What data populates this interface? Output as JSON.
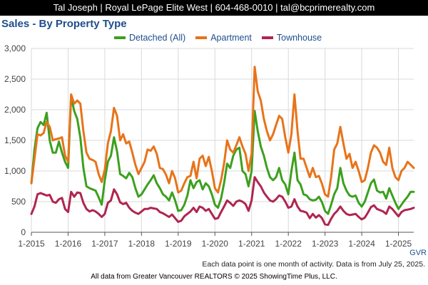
{
  "header": {
    "text": "Tal Joseph | Royal LePage Elite West | 604-468-0010 | tal@bcprimerealty.com"
  },
  "chart_data": {
    "type": "line",
    "title": "Sales - By Property Type",
    "xlabel": "",
    "ylabel": "",
    "ylim": [
      0,
      3000
    ],
    "yticks": [
      0,
      500,
      1000,
      1500,
      2000,
      2500,
      3000
    ],
    "ytick_labels": [
      "0",
      "500",
      "1,000",
      "1,500",
      "2,000",
      "2,500",
      "3,000"
    ],
    "x_start": "2015-01",
    "xtick_labels": [
      "1-2015",
      "1-2016",
      "1-2017",
      "1-2018",
      "1-2019",
      "1-2020",
      "1-2021",
      "1-2022",
      "1-2023",
      "1-2024",
      "1-2025"
    ],
    "grid": true,
    "legend_position": "top-center",
    "series": [
      {
        "name": "Detached (All)",
        "color": "#3ca01e",
        "values": [
          800,
          1350,
          1700,
          1800,
          1750,
          1950,
          1500,
          1300,
          1300,
          1480,
          1300,
          1150,
          1050,
          2220,
          1980,
          1850,
          1550,
          1050,
          750,
          720,
          700,
          680,
          570,
          450,
          850,
          1150,
          1250,
          1550,
          1320,
          950,
          920,
          880,
          970,
          900,
          720,
          580,
          620,
          700,
          780,
          850,
          930,
          800,
          720,
          620,
          580,
          520,
          650,
          520,
          350,
          360,
          450,
          600,
          850,
          720,
          820,
          850,
          700,
          800,
          750,
          620,
          450,
          400,
          550,
          800,
          1120,
          1050,
          1250,
          1350,
          1380,
          1000,
          950,
          750,
          1000,
          1980,
          1650,
          1400,
          1250,
          1050,
          900,
          850,
          900,
          1050,
          850,
          780,
          620,
          1000,
          1300,
          850,
          780,
          620,
          600,
          540,
          520,
          530,
          580,
          490,
          350,
          300,
          450,
          620,
          720,
          1050,
          800,
          680,
          600,
          580,
          600,
          480,
          420,
          500,
          650,
          800,
          860,
          680,
          650,
          660,
          550,
          720,
          600,
          480,
          380,
          450,
          520,
          580,
          660,
          660
        ]
      },
      {
        "name": "Apartment",
        "color": "#e8731a",
        "values": [
          800,
          1200,
          1600,
          1580,
          1620,
          1800,
          1720,
          1500,
          1520,
          1530,
          1550,
          1250,
          1150,
          2250,
          2100,
          2150,
          2100,
          1650,
          1300,
          1200,
          1180,
          1150,
          950,
          820,
          1020,
          1450,
          1650,
          2030,
          1900,
          1500,
          1600,
          1450,
          1480,
          1300,
          1100,
          950,
          1050,
          1150,
          1350,
          1330,
          1400,
          1280,
          1050,
          1030,
          940,
          800,
          1000,
          880,
          650,
          680,
          800,
          900,
          920,
          1150,
          880,
          1200,
          1250,
          1080,
          1230,
          1000,
          720,
          650,
          850,
          1120,
          1500,
          1350,
          1300,
          1420,
          1550,
          1400,
          1280,
          1000,
          1280,
          2700,
          2300,
          2150,
          1850,
          1650,
          1500,
          1600,
          1750,
          1900,
          1850,
          1550,
          1300,
          1600,
          2250,
          1650,
          1200,
          1200,
          1050,
          900,
          1050,
          900,
          920,
          790,
          620,
          580,
          900,
          1350,
          1450,
          1720,
          1450,
          1200,
          1280,
          1050,
          1150,
          1000,
          820,
          850,
          1050,
          1300,
          1420,
          1380,
          1300,
          1150,
          1100,
          1380,
          1050,
          900,
          850,
          1000,
          1050,
          1150,
          1100,
          1050
        ]
      },
      {
        "name": "Townhouse",
        "color": "#b02550",
        "values": [
          300,
          420,
          620,
          640,
          620,
          600,
          610,
          500,
          480,
          540,
          560,
          380,
          330,
          660,
          580,
          650,
          640,
          480,
          380,
          340,
          360,
          340,
          300,
          250,
          300,
          480,
          520,
          700,
          620,
          490,
          460,
          480,
          400,
          350,
          320,
          300,
          340,
          380,
          380,
          400,
          390,
          380,
          330,
          310,
          280,
          250,
          290,
          230,
          170,
          190,
          260,
          300,
          340,
          400,
          330,
          420,
          400,
          350,
          380,
          300,
          220,
          230,
          330,
          420,
          520,
          480,
          430,
          500,
          520,
          500,
          460,
          350,
          520,
          900,
          820,
          750,
          650,
          580,
          520,
          500,
          540,
          600,
          580,
          500,
          400,
          420,
          540,
          420,
          350,
          340,
          320,
          230,
          300,
          240,
          280,
          230,
          130,
          120,
          220,
          300,
          350,
          420,
          350,
          300,
          280,
          290,
          300,
          250,
          210,
          240,
          320,
          410,
          440,
          380,
          360,
          340,
          300,
          420,
          380,
          320,
          260,
          330,
          360,
          370,
          380,
          400
        ]
      }
    ]
  },
  "footnote": "Each data point is one month of activity. Data is from July 25, 2025.",
  "source_tag": "GVR",
  "credit": "All data from Greater Vancouver REALTORS © 2025 ShowingTime Plus, LLC."
}
